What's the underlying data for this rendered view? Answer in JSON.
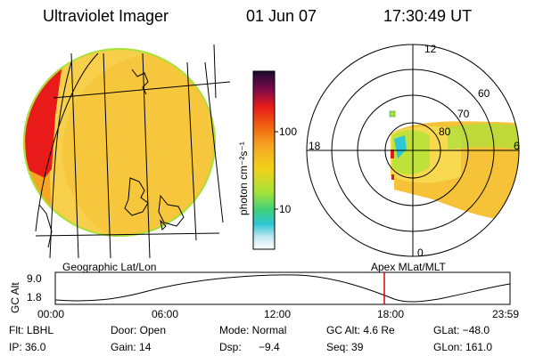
{
  "header": {
    "title": "Ultraviolet Imager",
    "date": "01 Jun 07",
    "time": "17:30:49 UT"
  },
  "colorbar": {
    "unit_label": "photon cm⁻²s⁻¹",
    "ticks": [
      "100",
      "10"
    ]
  },
  "geo_panel": {
    "caption": "Geographic Lat/Lon"
  },
  "polar_panel": {
    "caption": "Apex MLat/MLT",
    "mlt_labels": {
      "top": "12",
      "left": "18",
      "right": "6",
      "bottom": "0"
    },
    "lat_labels": [
      "60",
      "70",
      "80"
    ]
  },
  "altitude_strip": {
    "axis_label": "GC Alt",
    "y_ticks": [
      "9.0",
      "1.8"
    ],
    "x_ticks": [
      "00:00",
      "06:00",
      "12:00",
      "18:00",
      "23:59"
    ],
    "marker_time": "17:30:49"
  },
  "info": {
    "row1": [
      "Flt: LBHL",
      "Door: Open",
      "Mode: Normal",
      "GC Alt: 4.6 Re",
      "GLat: −48.0"
    ],
    "row2": [
      "IP: 36.0",
      "Gain: 14",
      "Dsp:",
      "−9.4",
      "Seq: 39",
      "GLon: 161.0"
    ]
  },
  "colors": {
    "red": "#e81a1a",
    "orange": "#f5a623",
    "yellow": "#f2d21a",
    "green": "#a6e23a",
    "cyan": "#2fc7d6",
    "marker": "#e00000"
  }
}
